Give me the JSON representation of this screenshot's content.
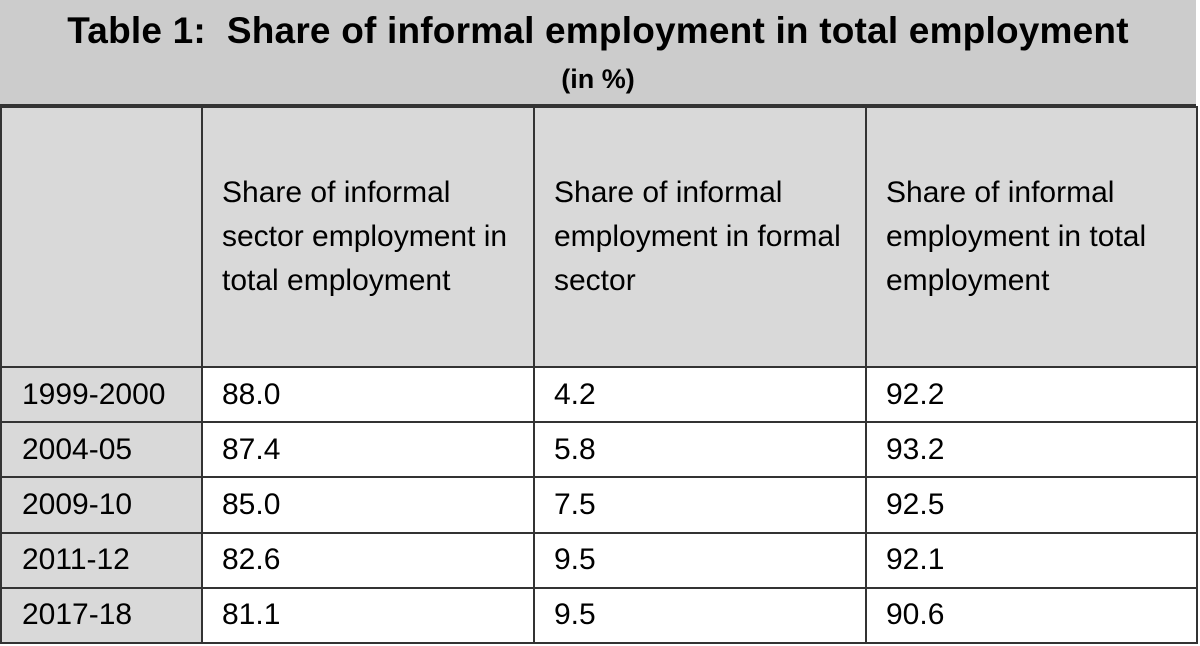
{
  "chart_data": {
    "type": "table",
    "title": "Table 1:  Share of informal employment in total employment",
    "subtitle": "(in %)",
    "columns": [
      "",
      "Share of informal sector employment in total employment",
      "Share of informal employment in formal sector",
      "Share of informal employment in total employment"
    ],
    "rows": [
      [
        "1999-2000",
        "88.0",
        "4.2",
        "92.2"
      ],
      [
        "2004-05",
        "87.4",
        "5.8",
        "93.2"
      ],
      [
        "2009-10",
        "85.0",
        "7.5",
        "92.5"
      ],
      [
        "2011-12",
        "82.6",
        "9.5",
        "92.1"
      ],
      [
        "2017-18",
        "81.1",
        "9.5",
        "90.6"
      ]
    ],
    "colors": {
      "header_fill": "#d9d9d9",
      "title_fill": "#cccccc",
      "border": "#333333"
    }
  }
}
